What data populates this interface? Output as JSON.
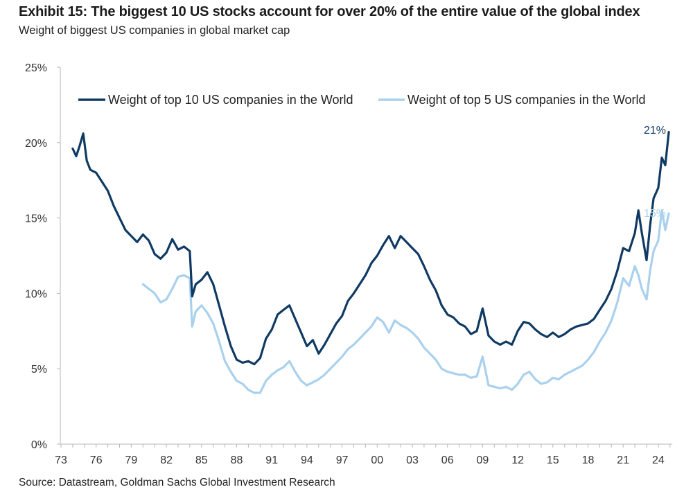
{
  "header": {
    "title": "Exhibit 15: The biggest 10 US stocks account for over 20% of the entire value of the global index",
    "subtitle": "Weight of biggest US companies in global market cap"
  },
  "footer": {
    "source": "Source: Datastream, Goldman Sachs Global Investment Research"
  },
  "colors": {
    "top10": "#0f3a63",
    "top5": "#a9d1ee",
    "axis": "#b7b7b7"
  },
  "chart_data": {
    "type": "line",
    "title": "Weight of biggest US companies in global market cap",
    "xlabel": "",
    "ylabel": "",
    "xlim": [
      1973,
      2025.5
    ],
    "ylim": [
      0,
      25
    ],
    "y_ticks": [
      0,
      5,
      10,
      15,
      20,
      25
    ],
    "y_tick_labels": [
      "0%",
      "5%",
      "10%",
      "15%",
      "20%",
      "25%"
    ],
    "x_ticks": [
      1973,
      1976,
      1979,
      1982,
      1985,
      1988,
      1991,
      1994,
      1997,
      2000,
      2003,
      2006,
      2009,
      2012,
      2015,
      2018,
      2021,
      2024
    ],
    "x_tick_labels": [
      "73",
      "76",
      "79",
      "82",
      "85",
      "88",
      "91",
      "94",
      "97",
      "00",
      "03",
      "06",
      "09",
      "12",
      "15",
      "18",
      "21",
      "24"
    ],
    "grid": false,
    "legend_position": "top",
    "series": [
      {
        "name": "Weight of top 10 US companies in the World",
        "end_label": "21%",
        "x": [
          1974.0,
          1974.3,
          1974.6,
          1974.9,
          1975.2,
          1975.5,
          1976.0,
          1976.5,
          1977.0,
          1977.5,
          1978.0,
          1978.5,
          1979.0,
          1979.5,
          1980.0,
          1980.5,
          1981.0,
          1981.5,
          1982.0,
          1982.5,
          1983.0,
          1983.5,
          1984.0,
          1984.2,
          1984.5,
          1985.0,
          1985.5,
          1986.0,
          1986.5,
          1987.0,
          1987.5,
          1988.0,
          1988.5,
          1989.0,
          1989.5,
          1990.0,
          1990.5,
          1991.0,
          1991.5,
          1992.0,
          1992.5,
          1993.0,
          1993.5,
          1994.0,
          1994.5,
          1995.0,
          1995.5,
          1996.0,
          1996.5,
          1997.0,
          1997.5,
          1998.0,
          1998.5,
          1999.0,
          1999.5,
          2000.0,
          2000.5,
          2001.0,
          2001.5,
          2002.0,
          2002.5,
          2003.0,
          2003.5,
          2004.0,
          2004.5,
          2005.0,
          2005.5,
          2006.0,
          2006.5,
          2007.0,
          2007.5,
          2008.0,
          2008.5,
          2009.0,
          2009.5,
          2010.0,
          2010.5,
          2011.0,
          2011.5,
          2012.0,
          2012.5,
          2013.0,
          2013.5,
          2014.0,
          2014.5,
          2015.0,
          2015.5,
          2016.0,
          2016.5,
          2017.0,
          2017.5,
          2018.0,
          2018.5,
          2019.0,
          2019.5,
          2020.0,
          2020.5,
          2021.0,
          2021.5,
          2022.0,
          2022.3,
          2022.6,
          2023.0,
          2023.3,
          2023.6,
          2024.0,
          2024.3,
          2024.6,
          2024.9
        ],
        "values": [
          19.6,
          19.1,
          19.8,
          20.6,
          18.8,
          18.2,
          18.0,
          17.4,
          16.8,
          15.8,
          15.0,
          14.2,
          13.8,
          13.4,
          13.9,
          13.5,
          12.6,
          12.3,
          12.7,
          13.6,
          12.9,
          13.1,
          12.8,
          9.8,
          10.6,
          10.9,
          11.4,
          10.6,
          9.2,
          7.8,
          6.5,
          5.6,
          5.4,
          5.5,
          5.3,
          5.7,
          7.0,
          7.6,
          8.6,
          8.9,
          9.2,
          8.3,
          7.4,
          6.5,
          6.9,
          6.0,
          6.6,
          7.3,
          8.0,
          8.5,
          9.5,
          10.0,
          10.6,
          11.2,
          12.0,
          12.5,
          13.2,
          13.8,
          13.0,
          13.8,
          13.4,
          13.0,
          12.6,
          11.8,
          10.9,
          10.2,
          9.2,
          8.6,
          8.4,
          8.0,
          7.8,
          7.3,
          7.5,
          9.0,
          7.2,
          6.8,
          6.6,
          6.8,
          6.6,
          7.5,
          8.1,
          8.0,
          7.6,
          7.3,
          7.1,
          7.4,
          7.1,
          7.3,
          7.6,
          7.8,
          7.9,
          8.0,
          8.3,
          8.9,
          9.5,
          10.3,
          11.5,
          13.0,
          12.8,
          14.0,
          15.5,
          14.0,
          12.2,
          14.5,
          16.3,
          17.0,
          19.0,
          18.5,
          20.7
        ]
      },
      {
        "name": "Weight of top 5 US companies in the World",
        "end_label": "15%",
        "x": [
          1980.0,
          1980.5,
          1981.0,
          1981.5,
          1982.0,
          1982.5,
          1983.0,
          1983.5,
          1984.0,
          1984.2,
          1984.5,
          1985.0,
          1985.5,
          1986.0,
          1986.5,
          1987.0,
          1987.5,
          1988.0,
          1988.5,
          1989.0,
          1989.5,
          1990.0,
          1990.5,
          1991.0,
          1991.5,
          1992.0,
          1992.5,
          1993.0,
          1993.5,
          1994.0,
          1994.5,
          1995.0,
          1995.5,
          1996.0,
          1996.5,
          1997.0,
          1997.5,
          1998.0,
          1998.5,
          1999.0,
          1999.5,
          2000.0,
          2000.5,
          2001.0,
          2001.5,
          2002.0,
          2002.5,
          2003.0,
          2003.5,
          2004.0,
          2004.5,
          2005.0,
          2005.5,
          2006.0,
          2006.5,
          2007.0,
          2007.5,
          2008.0,
          2008.5,
          2009.0,
          2009.5,
          2010.0,
          2010.5,
          2011.0,
          2011.5,
          2012.0,
          2012.5,
          2013.0,
          2013.5,
          2014.0,
          2014.5,
          2015.0,
          2015.5,
          2016.0,
          2016.5,
          2017.0,
          2017.5,
          2018.0,
          2018.5,
          2019.0,
          2019.5,
          2020.0,
          2020.5,
          2021.0,
          2021.5,
          2022.0,
          2022.3,
          2022.6,
          2023.0,
          2023.3,
          2023.6,
          2024.0,
          2024.3,
          2024.6,
          2024.9
        ],
        "values": [
          10.6,
          10.3,
          10.0,
          9.4,
          9.6,
          10.3,
          11.1,
          11.2,
          11.0,
          7.8,
          8.8,
          9.2,
          8.7,
          8.0,
          6.8,
          5.5,
          4.8,
          4.2,
          4.0,
          3.6,
          3.4,
          3.4,
          4.2,
          4.6,
          4.9,
          5.1,
          5.5,
          4.8,
          4.2,
          3.9,
          4.1,
          4.3,
          4.6,
          5.0,
          5.4,
          5.8,
          6.3,
          6.6,
          7.0,
          7.4,
          7.8,
          8.4,
          8.1,
          7.4,
          8.2,
          7.9,
          7.7,
          7.4,
          7.0,
          6.4,
          6.0,
          5.6,
          5.0,
          4.8,
          4.7,
          4.6,
          4.6,
          4.4,
          4.5,
          5.8,
          3.9,
          3.8,
          3.7,
          3.8,
          3.6,
          4.0,
          4.6,
          4.8,
          4.3,
          4.0,
          4.1,
          4.4,
          4.3,
          4.6,
          4.8,
          5.0,
          5.2,
          5.6,
          6.1,
          6.8,
          7.4,
          8.2,
          9.4,
          11.0,
          10.5,
          11.8,
          11.2,
          10.3,
          9.6,
          11.5,
          12.8,
          13.5,
          15.5,
          14.2,
          15.3
        ]
      }
    ]
  }
}
